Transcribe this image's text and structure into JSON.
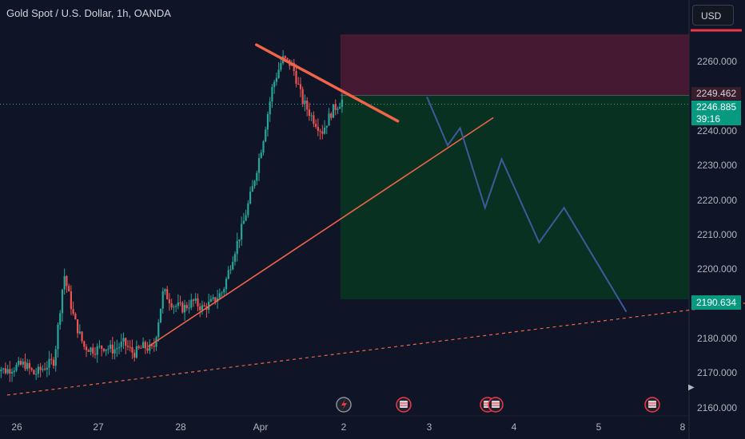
{
  "header": {
    "title": "Gold Spot / U.S. Dollar, 1h, OANDA"
  },
  "price_scale": {
    "currency_button": "USD"
  },
  "chart_data": {
    "type": "candlestick",
    "title": "Gold Spot / U.S. Dollar, 1h, OANDA",
    "x_ticks": [
      "26",
      "27",
      "28",
      "Apr",
      "2",
      "3",
      "4",
      "5",
      "8"
    ],
    "y_ticks": [
      "2260.000",
      "2240.000",
      "2230.000",
      "2220.000",
      "2210.000",
      "2200.000",
      "2180.000",
      "2170.000",
      "2160.000"
    ],
    "ylim": [
      2157,
      2275
    ],
    "labels": {
      "stop_level": "2249.462",
      "current_price": "2246.885",
      "countdown": "39:16",
      "target_level": "2190.634"
    },
    "levels": {
      "stop": 2249.462,
      "current": 2246.885,
      "target": 2190.634,
      "entry": 2248.3
    },
    "candle_trend": [
      2172,
      2170,
      2171,
      2172,
      2169,
      2171,
      2173,
      2198,
      2185,
      2177,
      2176,
      2177,
      2176,
      2178,
      2175,
      2177,
      2176,
      2193,
      2189,
      2188,
      2190,
      2188,
      2190,
      2193,
      2203,
      2212,
      2223,
      2236,
      2252,
      2260,
      2258,
      2248,
      2243,
      2239,
      2245,
      2248
    ],
    "projection_path": [
      [
        2.0,
        2249
      ],
      [
        2.25,
        2235
      ],
      [
        2.4,
        2240
      ],
      [
        2.7,
        2217
      ],
      [
        2.9,
        2231
      ],
      [
        3.35,
        2207
      ],
      [
        3.65,
        2217
      ],
      [
        4.4,
        2187
      ]
    ],
    "trendlines": {
      "resistance": [
        [
          -0.05,
          2264
        ],
        [
          1.65,
          2242
        ]
      ],
      "support": [
        [
          -1.35,
          2177
        ],
        [
          2.8,
          2243
        ]
      ],
      "long_term_support": [
        [
          -3.05,
          2163
        ],
        [
          7.0,
          2193
        ]
      ]
    },
    "event_markers": [
      "lightning-event",
      "us-flag-event",
      "us-flag-event",
      "us-flag-event",
      "us-flag-event"
    ],
    "colors": {
      "background": "#0f1426",
      "up_candle": "#26a69a",
      "down_candle": "#ef5350",
      "trendline": "#f0644a",
      "projection": "#3d5a99",
      "stop_zone": "#4a1a33",
      "target_zone": "#0a3322",
      "stop_label_bg": "#3b1c2a",
      "current_label_bg": "#089981",
      "target_label_bg": "#089981"
    }
  }
}
